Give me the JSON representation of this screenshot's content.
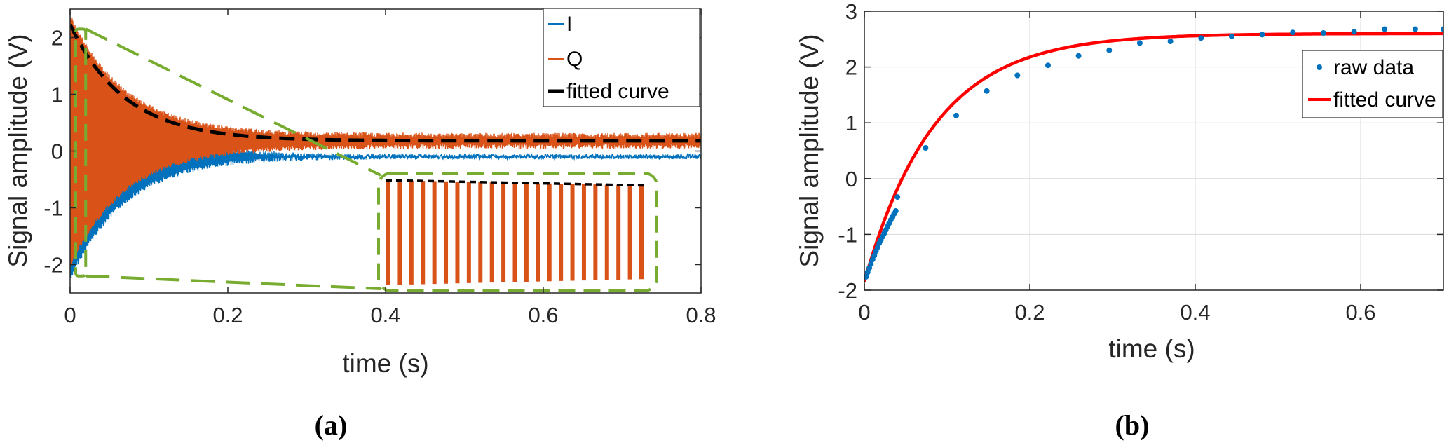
{
  "chart_data": [
    {
      "type": "line",
      "panel_label": "(a)",
      "xlabel": "time (s)",
      "ylabel": "Signal amplitude (V)",
      "xlim": [
        0,
        0.8
      ],
      "ylim": [
        -2.5,
        2.5
      ],
      "xticks": [
        0,
        0.2,
        0.4,
        0.6,
        0.8
      ],
      "xtick_labels": [
        "0",
        "0.2",
        "0.4",
        "0.6",
        "0.8"
      ],
      "yticks": [
        2,
        1,
        0,
        -1,
        -2
      ],
      "ytick_labels": [
        "2",
        "1",
        "0",
        "-1",
        "-2"
      ],
      "legend_position": "top-right",
      "series": [
        {
          "name": "I",
          "color": "#0072BD",
          "style": "oscillation",
          "offset": -0.1,
          "amp0": 2.15,
          "amp_inf": 0.0,
          "tau": 0.07
        },
        {
          "name": "Q",
          "color": "#D95319",
          "style": "oscillation",
          "offset": 0.18,
          "amp0": 2.2,
          "amp_inf": 0.1,
          "tau": 0.07
        },
        {
          "name": "fitted curve",
          "color": "#000000",
          "style": "dashed",
          "a": 2.05,
          "b": 0.18,
          "tau": 0.07
        }
      ],
      "inset": {
        "xlim": [
          0,
          0.018
        ],
        "dashes_upper": [
          2.1,
          1.88
        ],
        "dashes_lower": [
          -2.35,
          -2.1
        ],
        "count": 23,
        "color": "#D95319",
        "frame_color": "#77AC30"
      }
    },
    {
      "type": "scatter",
      "panel_label": "(b)",
      "xlabel": "time (s)",
      "ylabel": "Signal amplitude (V)",
      "xlim": [
        0,
        0.7
      ],
      "ylim": [
        -2,
        3
      ],
      "xticks": [
        0,
        0.2,
        0.4,
        0.6
      ],
      "xtick_labels": [
        "0",
        "0.2",
        "0.4",
        "0.6"
      ],
      "yticks": [
        3,
        2,
        1,
        0,
        -1,
        -2
      ],
      "ytick_labels": [
        "3",
        "2",
        "1",
        "0",
        "-1",
        "-2"
      ],
      "legend_position": "top-right",
      "series": [
        {
          "name": "raw data",
          "color": "#0072BD",
          "style": "markers",
          "x": [
            0.002,
            0.004,
            0.006,
            0.008,
            0.01,
            0.012,
            0.014,
            0.016,
            0.018,
            0.02,
            0.022,
            0.024,
            0.026,
            0.028,
            0.03,
            0.032,
            0.034,
            0.036,
            0.038,
            0.04,
            0.074,
            0.111,
            0.148,
            0.185,
            0.222,
            0.259,
            0.296,
            0.333,
            0.37,
            0.407,
            0.444,
            0.481,
            0.518,
            0.555,
            0.592,
            0.629,
            0.666,
            0.7
          ],
          "y": [
            -1.76,
            -1.68,
            -1.6,
            -1.53,
            -1.45,
            -1.38,
            -1.3,
            -1.23,
            -1.16,
            -1.1,
            -1.04,
            -0.98,
            -0.92,
            -0.86,
            -0.8,
            -0.74,
            -0.69,
            -0.63,
            -0.58,
            -0.33,
            0.55,
            1.13,
            1.57,
            1.85,
            2.03,
            2.2,
            2.3,
            2.43,
            2.46,
            2.52,
            2.55,
            2.58,
            2.62,
            2.61,
            2.63,
            2.68,
            2.68,
            2.68
          ]
        },
        {
          "name": "fitted curve",
          "color": "#FF0000",
          "style": "solid",
          "a": 2.6,
          "b": 4.45,
          "tau": 0.085
        }
      ]
    }
  ]
}
